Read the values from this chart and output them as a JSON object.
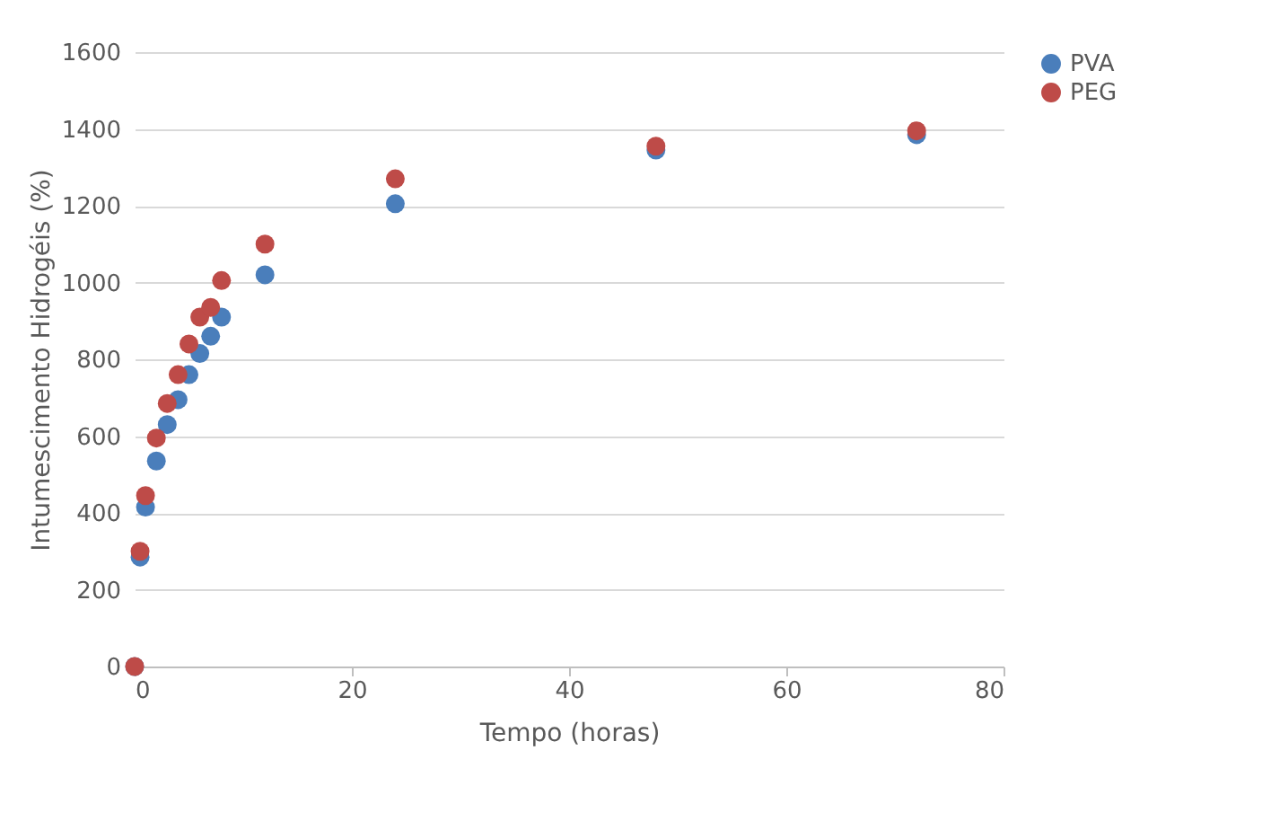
{
  "chart_data": {
    "type": "scatter",
    "xlabel": "Tempo (horas)",
    "ylabel": "Intumescimento Hidrogéis (%)",
    "x": [
      0,
      0.5,
      1,
      2,
      3,
      4,
      5,
      6,
      7,
      8,
      12,
      24,
      48,
      72
    ],
    "series": [
      {
        "name": "PVA",
        "color": "#4a7ebb",
        "values": [
          0,
          285,
          415,
          535,
          630,
          695,
          760,
          815,
          860,
          910,
          1020,
          1205,
          1345,
          1385
        ]
      },
      {
        "name": "PEG",
        "color": "#be4b48",
        "values": [
          0,
          300,
          445,
          595,
          685,
          760,
          840,
          910,
          935,
          1005,
          1100,
          1270,
          1355,
          1395
        ]
      }
    ],
    "xlim": [
      0,
      80
    ],
    "xticks": [
      0,
      20,
      40,
      60,
      80
    ],
    "ylim": [
      0,
      1600
    ],
    "yticks": [
      0,
      200,
      400,
      600,
      800,
      1000,
      1200,
      1400,
      1600
    ],
    "grid": "y",
    "legend": "right",
    "marker": "circle"
  }
}
